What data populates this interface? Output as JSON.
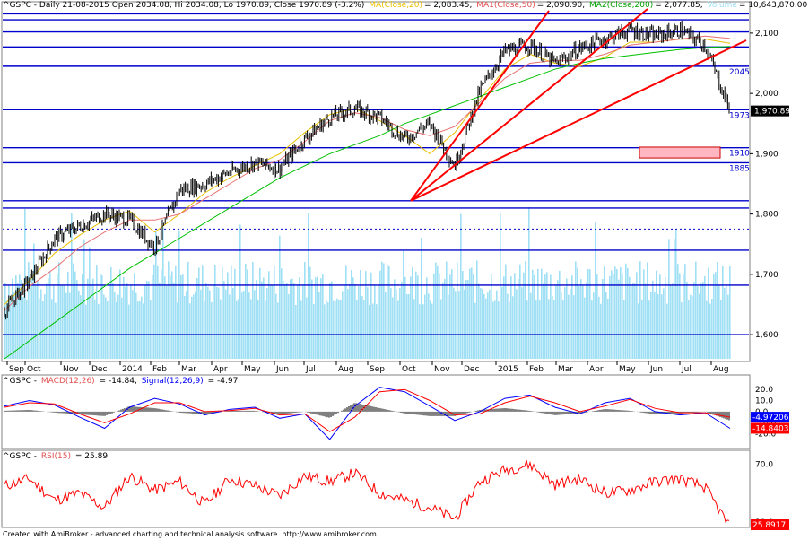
{
  "header": {
    "symbol": "^GSPC",
    "info": "^GSPC - Daily 21-08-2015 Open 2034.08, Hi 2034.08, Lo 1970.89, Close 1970.89 (-3.2%)",
    "ma20": "MA(Close,20)",
    "ma20_val": "= 2,083.45,",
    "ma50": "MA1(Close,50)",
    "ma50_val": "= 2,090.90,",
    "ma200": "MA2(Close,200)",
    "ma200_val": "= 2,077.85,",
    "volume": "Volume",
    "volume_val": "= 10,643,870.00"
  },
  "macd_header": {
    "prefix": "^GSPC - ",
    "macd": "MACD(12,26)",
    "macd_val": "= -14.84,",
    "signal": "Signal(12,26,9)",
    "signal_val": "= -4.97"
  },
  "rsi_header": {
    "prefix": "^GSPC - ",
    "rsi": "RSI(15)",
    "rsi_val": "= 25.89"
  },
  "footer": "Created with AmiBroker - advanced charting and technical analysis software. http://www.amibroker.com",
  "colors": {
    "price": "#000000",
    "ma20": "#e8c000",
    "ma50": "#e87070",
    "ma200": "#00c000",
    "volume": "#9fe0f5",
    "hline": "#0000cc",
    "trend": "#ff0000",
    "macd": "#0000ff",
    "signal": "#ff0000",
    "rsi": "#ff0000",
    "box": "#ffb6c1"
  },
  "chart_data": [
    {
      "type": "line",
      "title": "^GSPC - Daily 21-08-2015 Open 2034.08, Hi 2034.08, Lo 1970.89, Close 1970.89 (-3.2%)",
      "ylim": [
        1560,
        2140
      ],
      "y_ticks": [
        "2,100",
        "2,000",
        "1,900",
        "1,800",
        "1,700",
        "1,600"
      ],
      "x_ticks": [
        "Sep",
        "Oct",
        "Nov",
        "Dec",
        "2014",
        "Feb",
        "Mar",
        "Apr",
        "May",
        "Jun",
        "Jul",
        "Aug",
        "Sep",
        "Oct",
        "Nov",
        "Dec",
        "2015",
        "Feb",
        "Mar",
        "Apr",
        "May",
        "Jun",
        "Jul",
        "Aug"
      ],
      "last_close_label": "1,970.89",
      "horizontal_levels": [
        2132,
        2122,
        2102,
        2077,
        2045,
        1973,
        1910,
        1885,
        1822,
        1810,
        1775,
        1740,
        1682,
        1600
      ],
      "level_labels": [
        {
          "value": 2045,
          "text": "2045"
        },
        {
          "value": 1973,
          "text": "1973"
        },
        {
          "value": 1910,
          "text": "1910"
        },
        {
          "value": 1885,
          "text": "1885"
        }
      ],
      "highlight_box": {
        "from": 1893,
        "to": 1911
      },
      "trendline_origin": {
        "date": "Oct 2014",
        "value": 1822
      },
      "series": [
        {
          "name": "MA(Close,20)",
          "values": [
            1650,
            1690,
            1735,
            1765,
            1790,
            1805,
            1770,
            1800,
            1835,
            1860,
            1880,
            1900,
            1935,
            1965,
            1975,
            1955,
            1930,
            1900,
            1935,
            1990,
            2040,
            2065,
            2050,
            2045,
            2060,
            2085,
            2085,
            2090,
            2090,
            2083
          ]
        },
        {
          "name": "MA1(Close,50)",
          "values": [
            1640,
            1680,
            1710,
            1745,
            1770,
            1790,
            1790,
            1800,
            1825,
            1850,
            1875,
            1890,
            1920,
            1955,
            1968,
            1960,
            1940,
            1930,
            1945,
            1985,
            2025,
            2050,
            2055,
            2055,
            2065,
            2080,
            2085,
            2090,
            2095,
            2091
          ]
        },
        {
          "name": "MA2(Close,200)",
          "values": [
            1560,
            1590,
            1620,
            1650,
            1680,
            1710,
            1735,
            1760,
            1785,
            1810,
            1835,
            1860,
            1880,
            1900,
            1915,
            1930,
            1950,
            1965,
            1980,
            1995,
            2010,
            2025,
            2040,
            2050,
            2058,
            2063,
            2068,
            2073,
            2076,
            2078
          ]
        }
      ],
      "close_values": [
        1640,
        1690,
        1760,
        1780,
        1800,
        1790,
        1745,
        1840,
        1850,
        1870,
        1885,
        1875,
        1925,
        1960,
        1975,
        1960,
        1925,
        1950,
        1880,
        2005,
        2070,
        2080,
        2050,
        2075,
        2090,
        2105,
        2095,
        2105,
        2080,
        1971
      ]
    },
    {
      "type": "line",
      "title": "MACD(12,26)",
      "ylim": [
        -30,
        25
      ],
      "y_ticks": [
        "20.0",
        "10.0",
        "0.0",
        "-10.0",
        "-20.0"
      ],
      "value_labels": [
        "-4.97206",
        "-14.8403"
      ],
      "series": [
        {
          "name": "MACD(12,26)",
          "values": [
            5,
            10,
            6,
            -5,
            -15,
            4,
            12,
            7,
            -3,
            2,
            4,
            -6,
            -2,
            -25,
            5,
            22,
            18,
            5,
            -8,
            0,
            12,
            15,
            4,
            -2,
            8,
            12,
            0,
            -3,
            -1,
            -15
          ]
        },
        {
          "name": "Signal(12,26,9)",
          "values": [
            4,
            8,
            7,
            -2,
            -10,
            -2,
            8,
            8,
            0,
            1,
            3,
            -3,
            -2,
            -18,
            -5,
            18,
            20,
            10,
            -3,
            -2,
            8,
            14,
            8,
            0,
            5,
            11,
            3,
            -1,
            -1,
            -5
          ]
        }
      ]
    },
    {
      "type": "line",
      "title": "RSI(15)",
      "ylim": [
        28,
        76
      ],
      "y_ticks": [
        "70.0",
        "30.0"
      ],
      "value_labels": [
        "25.8917"
      ],
      "series": [
        {
          "name": "RSI(15)",
          "values": [
            55,
            60,
            45,
            50,
            40,
            62,
            52,
            58,
            42,
            60,
            55,
            48,
            62,
            58,
            64,
            50,
            45,
            40,
            32,
            58,
            66,
            70,
            56,
            60,
            50,
            52,
            58,
            60,
            54,
            26
          ]
        }
      ]
    }
  ]
}
